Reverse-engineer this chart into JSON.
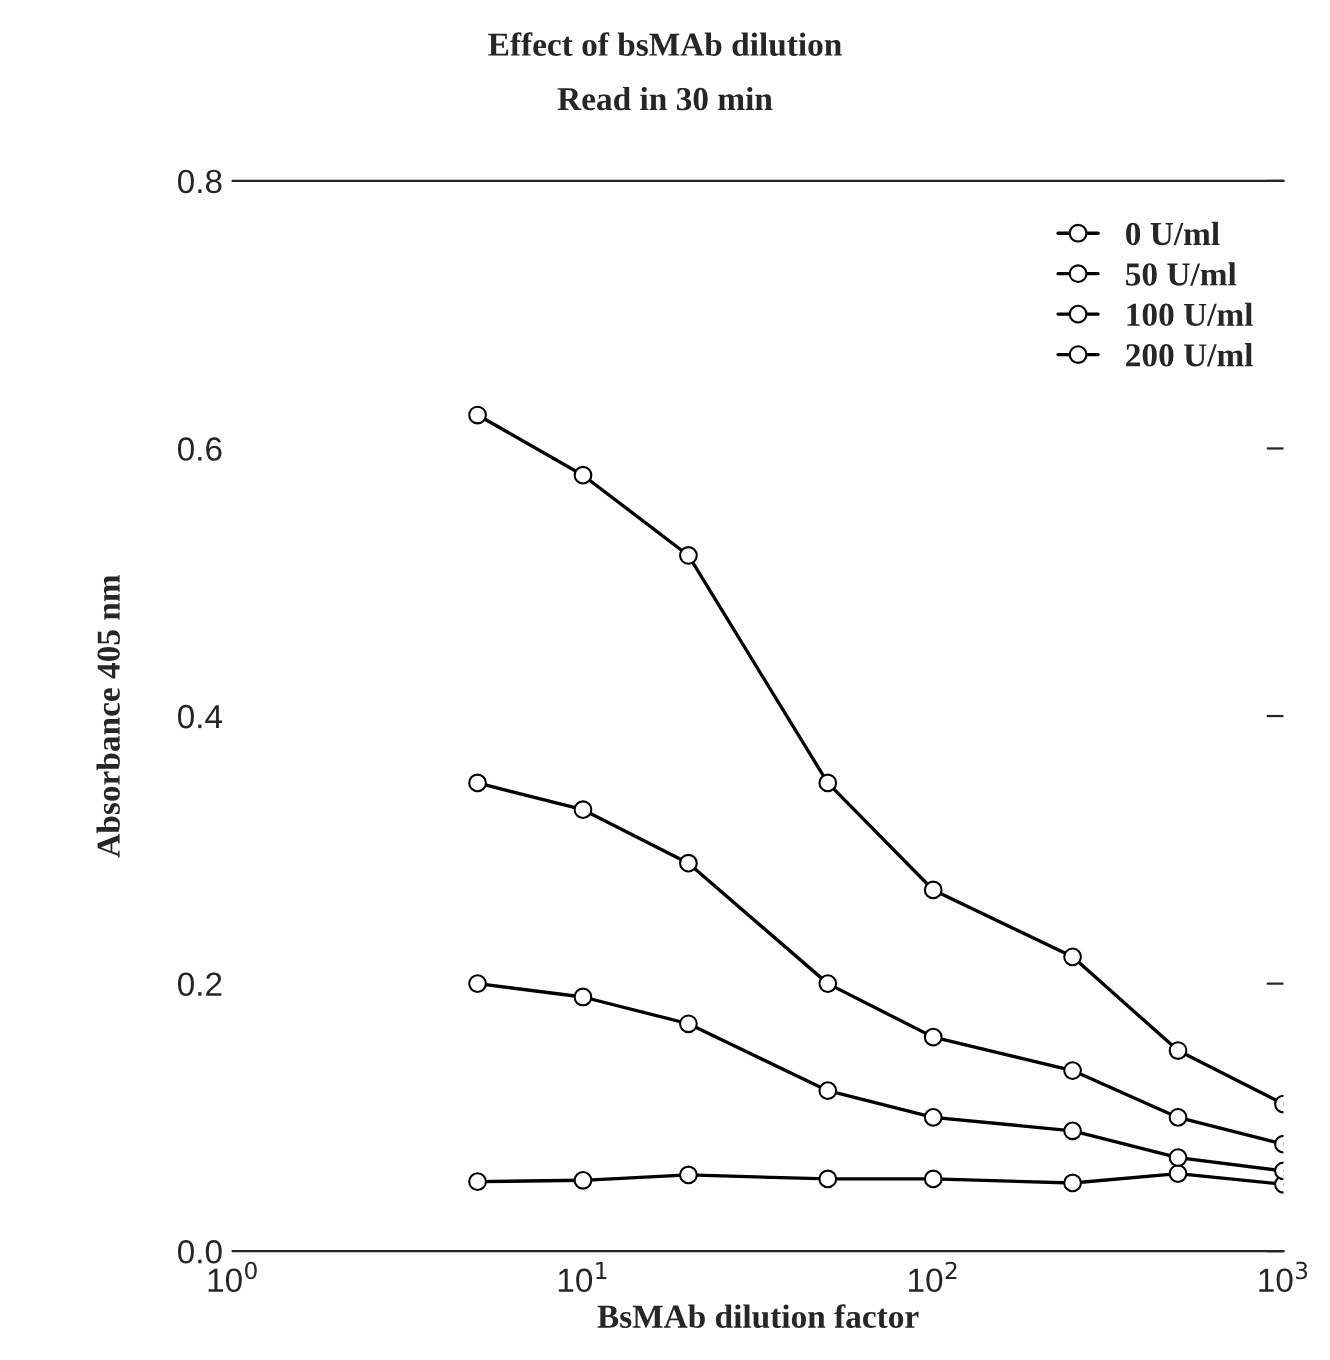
{
  "chart_data": {
    "type": "line",
    "title": "Effect of bsMAb dilution",
    "subtitle": "Read in 30 min",
    "xlabel": "BsMAb dilution factor",
    "ylabel": "Absorbance 405 nm",
    "x": [
      5,
      10,
      20,
      50,
      100,
      250,
      500,
      1000
    ],
    "series": [
      {
        "name": "0 U/ml",
        "color": "#000000",
        "values": [
          0.052,
          0.053,
          0.057,
          0.054,
          0.054,
          0.051,
          0.058,
          0.05
        ]
      },
      {
        "name": "50 U/ml",
        "color": "#000000",
        "values": [
          0.2,
          0.19,
          0.17,
          0.12,
          0.1,
          0.09,
          0.07,
          0.06
        ]
      },
      {
        "name": "100 U/ml",
        "color": "#000000",
        "values": [
          0.35,
          0.33,
          0.29,
          0.2,
          0.16,
          0.135,
          0.1,
          0.08
        ]
      },
      {
        "name": "200 U/ml",
        "color": "#000000",
        "values": [
          0.625,
          0.58,
          0.52,
          0.35,
          0.27,
          0.22,
          0.15,
          0.11
        ]
      }
    ],
    "log": "x",
    "xlim": [
      1,
      1000
    ],
    "xticks": [
      {
        "value": 1,
        "label": "10$^{0}$"
      },
      {
        "value": 10,
        "label": "10$^{1}$"
      },
      {
        "value": 100,
        "label": "10$^{2}$"
      },
      {
        "value": 1000,
        "label": "10$^{3}$"
      }
    ],
    "ylim": [
      0,
      0.8
    ],
    "yticks": [
      {
        "value": 0,
        "label": "0.0"
      },
      {
        "value": 0.2,
        "label": "0.2"
      },
      {
        "value": 0.4,
        "label": "0.4"
      },
      {
        "value": 0.6,
        "label": "0.6"
      },
      {
        "value": 0.8,
        "label": "0.8"
      }
    ],
    "legend": "top right",
    "marker": "circle",
    "line_style": "solid",
    "grid": false
  }
}
